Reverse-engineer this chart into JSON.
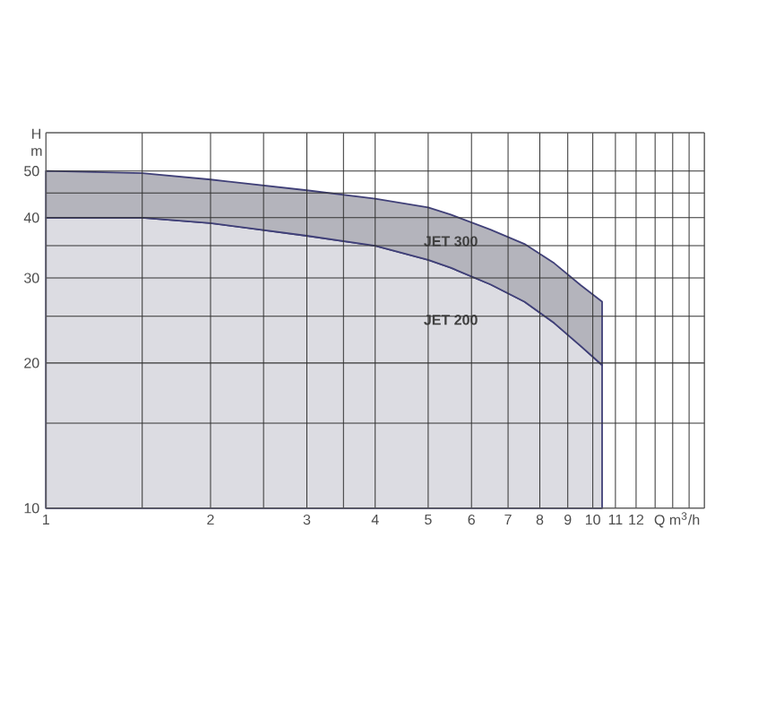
{
  "chart_data": {
    "type": "area",
    "xlabel": "Q m$^{3}$/h",
    "ylabel": "H m",
    "log": "xy",
    "grid": true,
    "xlim": [
      1,
      16
    ],
    "ylim": [
      10,
      60
    ],
    "xticks": [
      1,
      {
        "value": 1.5,
        "label": null
      },
      2,
      {
        "value": 2.5,
        "label": null
      },
      3,
      {
        "value": 3.5,
        "label": null
      },
      4,
      5,
      6,
      7,
      8,
      9,
      10,
      11,
      12,
      {
        "value": 13,
        "label": null
      },
      {
        "value": 14,
        "label": null
      },
      {
        "value": 15,
        "label": null
      },
      {
        "value": 16,
        "label": null
      }
    ],
    "yticks": [
      10,
      {
        "value": 15,
        "label": null
      },
      20,
      {
        "value": 25,
        "label": null
      },
      30,
      {
        "value": 35,
        "label": null
      },
      40,
      {
        "value": 45,
        "label": null
      },
      50,
      {
        "value": 60,
        "label": null
      }
    ],
    "x": [
      1,
      1.5,
      2,
      3,
      4,
      5,
      5.5,
      6.5,
      7.5,
      8.5,
      9.5,
      10.4
    ],
    "series": [
      {
        "name": "JET 300",
        "color": "#b4b4bc",
        "values": [
          50,
          49.5,
          48,
          45.6,
          43.8,
          42,
          40.6,
          37.8,
          35.3,
          32.2,
          29,
          26.8
        ]
      },
      {
        "name": "JET 200",
        "color": "#dcdce2",
        "values": [
          40,
          40,
          39,
          36.7,
          35,
          32.7,
          31.5,
          29.1,
          26.8,
          24.2,
          21.7,
          19.8
        ]
      }
    ]
  }
}
